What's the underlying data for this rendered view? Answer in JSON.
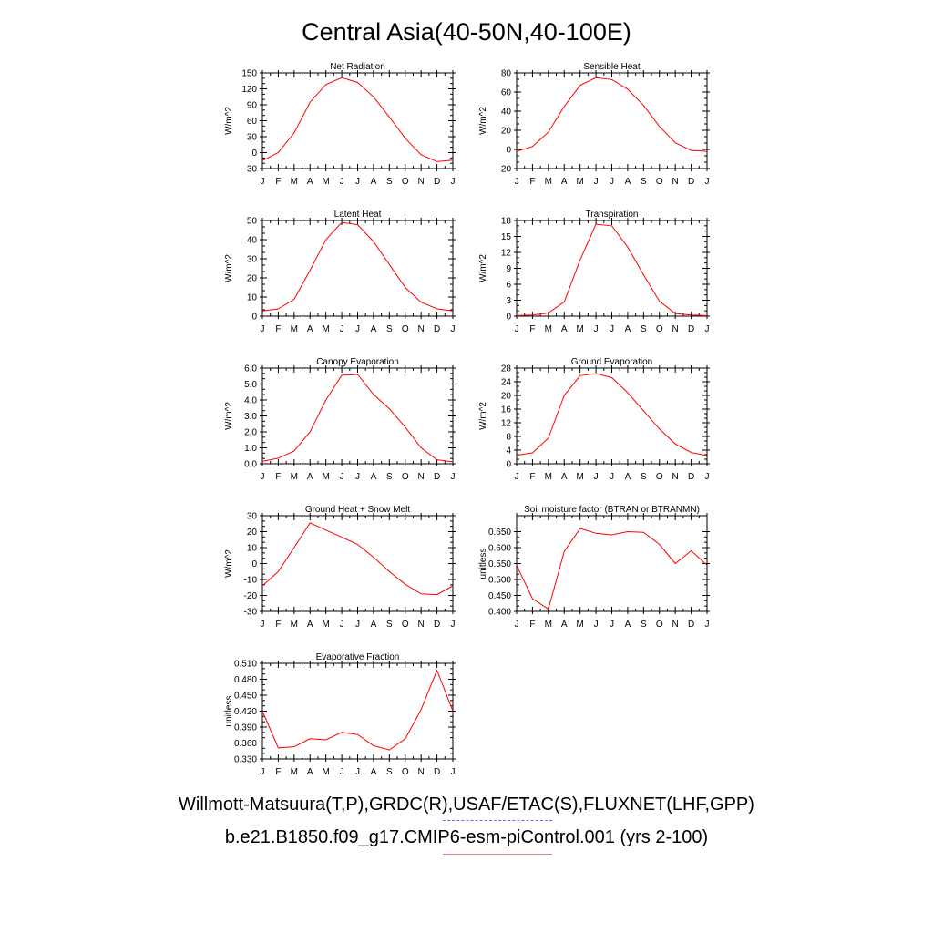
{
  "title": "Central Asia(40-50N,40-100E)",
  "legend": {
    "observations": "Willmott-Matsuura(T,P),GRDC(R),USAF/ETAC(S),FLUXNET(LHF,GPP)",
    "model": "b.e21.B1850.f09_g17.CMIP6-esm-piControl.001 (yrs 2-100)"
  },
  "colors": {
    "model_line": "#ff0000",
    "obs_key": "#6a6af0",
    "model_key": "#f08080"
  },
  "chart_data": [
    {
      "type": "line",
      "title": "Net Radiation",
      "ylabel": "W/m^2",
      "categories": [
        "J",
        "F",
        "M",
        "A",
        "M",
        "J",
        "J",
        "A",
        "S",
        "O",
        "N",
        "D",
        "J"
      ],
      "ylim": [
        -30,
        150
      ],
      "yticks": [
        -30,
        0,
        30,
        60,
        90,
        120,
        150
      ],
      "ytick_labels": [
        "-30",
        "0",
        "30",
        "60",
        "90",
        "120",
        "150"
      ],
      "values": [
        -15,
        0,
        37,
        95,
        128,
        141,
        132,
        105,
        67,
        27,
        -4,
        -17,
        -14
      ]
    },
    {
      "type": "line",
      "title": "Sensible Heat",
      "ylabel": "W/m^2",
      "categories": [
        "J",
        "F",
        "M",
        "A",
        "M",
        "J",
        "J",
        "A",
        "S",
        "O",
        "N",
        "D",
        "J"
      ],
      "ylim": [
        -20,
        80
      ],
      "yticks": [
        -20,
        0,
        20,
        40,
        60,
        80
      ],
      "ytick_labels": [
        "-20",
        "0",
        "20",
        "40",
        "60",
        "80"
      ],
      "values": [
        -2,
        3,
        18,
        45,
        67,
        75,
        73,
        63,
        46,
        24,
        7,
        -1,
        -2
      ]
    },
    {
      "type": "line",
      "title": "Latent Heat",
      "ylabel": "W/m^2",
      "categories": [
        "J",
        "F",
        "M",
        "A",
        "M",
        "J",
        "J",
        "A",
        "S",
        "O",
        "N",
        "D",
        "J"
      ],
      "ylim": [
        0,
        50
      ],
      "yticks": [
        0,
        10,
        20,
        30,
        40,
        50
      ],
      "ytick_labels": [
        "0",
        "10",
        "20",
        "30",
        "40",
        "50"
      ],
      "values": [
        2.7,
        3.8,
        8.8,
        24,
        40,
        49,
        47.8,
        39,
        27,
        15,
        7.3,
        3.8,
        2.7
      ]
    },
    {
      "type": "line",
      "title": "Transpiration",
      "ylabel": "W/m^2",
      "categories": [
        "J",
        "F",
        "M",
        "A",
        "M",
        "J",
        "J",
        "A",
        "S",
        "O",
        "N",
        "D",
        "J"
      ],
      "ylim": [
        0,
        18
      ],
      "yticks": [
        0,
        3,
        6,
        9,
        12,
        15,
        18
      ],
      "ytick_labels": [
        "0",
        "3",
        "6",
        "9",
        "12",
        "15",
        "18"
      ],
      "values": [
        0.1,
        0.2,
        0.6,
        2.7,
        10.6,
        17.3,
        17,
        13,
        7.8,
        2.8,
        0.5,
        0.2,
        0.1
      ]
    },
    {
      "type": "line",
      "title": "Canopy Evaporation",
      "ylabel": "W/m^2",
      "categories": [
        "J",
        "F",
        "M",
        "A",
        "M",
        "J",
        "J",
        "A",
        "S",
        "O",
        "N",
        "D",
        "J"
      ],
      "ylim": [
        0,
        6
      ],
      "yticks": [
        0,
        1,
        2,
        3,
        4,
        5,
        6
      ],
      "ytick_labels": [
        "0.0",
        "1.0",
        "2.0",
        "3.0",
        "4.0",
        "5.0",
        "6.0"
      ],
      "values": [
        0.15,
        0.35,
        0.8,
        2.0,
        4.0,
        5.55,
        5.6,
        4.35,
        3.45,
        2.3,
        1.0,
        0.25,
        0.12
      ]
    },
    {
      "type": "line",
      "title": "Ground Evaporation",
      "ylabel": "W/m^2",
      "categories": [
        "J",
        "F",
        "M",
        "A",
        "M",
        "J",
        "J",
        "A",
        "S",
        "O",
        "N",
        "D",
        "J"
      ],
      "ylim": [
        0,
        28
      ],
      "yticks": [
        0,
        4,
        8,
        12,
        16,
        20,
        24,
        28
      ],
      "ytick_labels": [
        "0",
        "4",
        "8",
        "12",
        "16",
        "20",
        "24",
        "28"
      ],
      "values": [
        2.5,
        3.2,
        7.5,
        20,
        25.8,
        26.4,
        25.2,
        20.8,
        15.5,
        10.2,
        5.8,
        3.3,
        2.4
      ]
    },
    {
      "type": "line",
      "title": "Ground Heat + Snow Melt",
      "ylabel": "W/m^2",
      "categories": [
        "J",
        "F",
        "M",
        "A",
        "M",
        "J",
        "J",
        "A",
        "S",
        "O",
        "N",
        "D",
        "J"
      ],
      "ylim": [
        -30,
        30
      ],
      "yticks": [
        -30,
        -20,
        -10,
        0,
        10,
        20,
        30
      ],
      "ytick_labels": [
        "-30",
        "-20",
        "-10",
        "0",
        "10",
        "20",
        "30"
      ],
      "values": [
        -14,
        -5,
        10,
        25.5,
        21,
        16.5,
        12,
        4,
        -5,
        -13,
        -19,
        -19.5,
        -14
      ]
    },
    {
      "type": "line",
      "title": "Soil moisture factor (BTRAN or BTRANMN)",
      "ylabel": "unitless",
      "categories": [
        "J",
        "F",
        "M",
        "A",
        "M",
        "J",
        "J",
        "A",
        "S",
        "O",
        "N",
        "D",
        "J"
      ],
      "ylim": [
        0.4,
        0.7
      ],
      "yticks": [
        0.4,
        0.45,
        0.5,
        0.55,
        0.6,
        0.65
      ],
      "ytick_labels": [
        "0.400",
        "0.450",
        "0.500",
        "0.550",
        "0.600",
        "0.650"
      ],
      "values": [
        0.545,
        0.44,
        0.407,
        0.588,
        0.66,
        0.645,
        0.64,
        0.65,
        0.648,
        0.61,
        0.55,
        0.59,
        0.545
      ]
    },
    {
      "type": "line",
      "title": "Evaporative Fraction",
      "ylabel": "unitless",
      "categories": [
        "J",
        "F",
        "M",
        "A",
        "M",
        "J",
        "J",
        "A",
        "S",
        "O",
        "N",
        "D",
        "J"
      ],
      "ylim": [
        0.33,
        0.51
      ],
      "yticks": [
        0.33,
        0.36,
        0.39,
        0.42,
        0.45,
        0.48,
        0.51
      ],
      "ytick_labels": [
        "0.330",
        "0.360",
        "0.390",
        "0.420",
        "0.450",
        "0.480",
        "0.510"
      ],
      "values": [
        0.42,
        0.351,
        0.353,
        0.368,
        0.366,
        0.38,
        0.376,
        0.355,
        0.347,
        0.368,
        0.423,
        0.497,
        0.42
      ]
    }
  ]
}
